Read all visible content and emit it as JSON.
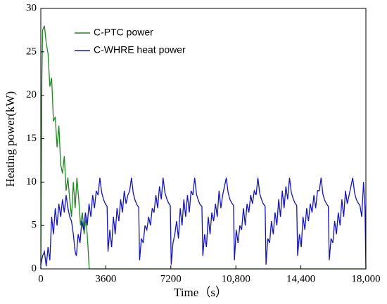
{
  "chart_data": {
    "type": "line",
    "xlabel": "Time（s）",
    "ylabel": "Heating power(kW)",
    "xlim": [
      0,
      18000
    ],
    "xticks": [
      0,
      3600,
      7200,
      {
        "value": 10800,
        "label": "10,800"
      },
      {
        "value": 14400,
        "label": "14,400"
      },
      {
        "value": 18000,
        "label": "18,000"
      }
    ],
    "ylim": [
      0,
      30
    ],
    "yticks": [
      0,
      5,
      10,
      15,
      20,
      25,
      30
    ],
    "legend": "upper left",
    "series": [
      {
        "name": "C-PTC power",
        "color": "#1a8a1a",
        "x": [
          0,
          30,
          60,
          100,
          200,
          300,
          400,
          500,
          600,
          700,
          800,
          900,
          1000,
          1100,
          1200,
          1300,
          1400,
          1500,
          1600,
          1700,
          1800,
          1900,
          2000,
          2100,
          2200,
          2300,
          2400,
          2500,
          2600,
          2680,
          18000
        ],
        "values": [
          0,
          12,
          22,
          27.5,
          28,
          26,
          24.8,
          21,
          22,
          17,
          17.5,
          14,
          16.5,
          12,
          11,
          13,
          9,
          10.5,
          8,
          6,
          10,
          7,
          10.5,
          8,
          5,
          6.5,
          4,
          6,
          3,
          0,
          0
        ]
      },
      {
        "name": "C-WHRE heat power",
        "color": "#1010e0",
        "x": [
          0,
          100,
          200,
          300,
          400,
          500,
          600,
          700,
          800,
          900,
          1000,
          1100,
          1200,
          1300,
          1400,
          1500,
          1600,
          1700,
          1800,
          1900,
          1970,
          2070,
          2170,
          2270,
          2370,
          2470,
          2570,
          2670,
          2770,
          2870,
          2970,
          3070,
          3170,
          3270,
          3370,
          3470,
          3570,
          3670,
          3720,
          3820,
          3920,
          4020,
          4120,
          4220,
          4320,
          4420,
          4520,
          4620,
          4720,
          4820,
          4920,
          5020,
          5120,
          5220,
          5320,
          5420,
          5470,
          5570,
          5670,
          5770,
          5870,
          5970,
          6070,
          6170,
          6270,
          6370,
          6470,
          6570,
          6670,
          6770,
          6870,
          6970,
          7070,
          7170,
          7220,
          7320,
          7420,
          7520,
          7620,
          7720,
          7820,
          7920,
          8020,
          8120,
          8220,
          8320,
          8420,
          8520,
          8620,
          8720,
          8820,
          8920,
          8970,
          9070,
          9170,
          9270,
          9370,
          9470,
          9570,
          9670,
          9770,
          9870,
          9970,
          10070,
          10170,
          10270,
          10370,
          10470,
          10570,
          10670,
          10720,
          10820,
          10920,
          11020,
          11120,
          11220,
          11320,
          11420,
          11520,
          11620,
          11720,
          11820,
          11920,
          12020,
          12120,
          12220,
          12320,
          12420,
          12470,
          12570,
          12670,
          12770,
          12870,
          12970,
          13070,
          13170,
          13270,
          13370,
          13470,
          13570,
          13670,
          13770,
          13870,
          13970,
          14070,
          14170,
          14220,
          14320,
          14420,
          14520,
          14620,
          14720,
          14820,
          14920,
          15020,
          15120,
          15220,
          15320,
          15420,
          15520,
          15620,
          15720,
          15820,
          15920,
          15970,
          16070,
          16170,
          16270,
          16370,
          16470,
          16570,
          16670,
          16770,
          16870,
          16970,
          17070,
          17170,
          17270,
          17370,
          17470,
          17570,
          17670,
          17770,
          17870,
          17950,
          18000
        ],
        "values": [
          0.5,
          1.5,
          2,
          0.3,
          2.5,
          1,
          6,
          4,
          7,
          5,
          7.5,
          6,
          8,
          6.5,
          8.5,
          7,
          6,
          5.5,
          4,
          2,
          1.5,
          4,
          3,
          5.5,
          4.5,
          6.5,
          5,
          7.5,
          6,
          8.5,
          7,
          9,
          8.5,
          10.5,
          8.8,
          8,
          7.5,
          7.2,
          2,
          4.5,
          2.5,
          6,
          4,
          7,
          5.5,
          8,
          6.5,
          9,
          7.5,
          8.5,
          9,
          10.5,
          8.7,
          7.9,
          7.4,
          7.1,
          1,
          3.5,
          3,
          5,
          4.5,
          6,
          5,
          7,
          6.5,
          8.5,
          7,
          9.5,
          8,
          10.5,
          8.8,
          8.1,
          7.6,
          7.3,
          0.5,
          3,
          4,
          5.5,
          3.5,
          7,
          5,
          8,
          6,
          8.5,
          6.5,
          9,
          8.5,
          10.5,
          8.6,
          7.9,
          7.4,
          7.2,
          1.5,
          4,
          2.5,
          6,
          4,
          6.5,
          5.5,
          7.5,
          6,
          9,
          7,
          8.5,
          9.5,
          10.5,
          8.8,
          8,
          7.6,
          7.3,
          1,
          4.5,
          3,
          5,
          4.5,
          7,
          5,
          7.5,
          6.5,
          8.5,
          7.5,
          9,
          8.5,
          10.5,
          8.7,
          8,
          7.5,
          7.2,
          0.5,
          3.5,
          3,
          5.5,
          4,
          6.5,
          5,
          8,
          6,
          9,
          7,
          9.5,
          8,
          10.5,
          8.8,
          8.1,
          7.6,
          7.3,
          1.5,
          4,
          2.5,
          6,
          4.5,
          7,
          5.5,
          7.5,
          6.5,
          8.5,
          7,
          9,
          9,
          10.5,
          8.6,
          7.9,
          7.5,
          7.2,
          1,
          3.5,
          3,
          5.5,
          4,
          6.5,
          5,
          8,
          6,
          9,
          7.5,
          8.5,
          9.5,
          10.5,
          8.8,
          8,
          7.6,
          7.3,
          6,
          10,
          7,
          0
        ]
      }
    ]
  }
}
